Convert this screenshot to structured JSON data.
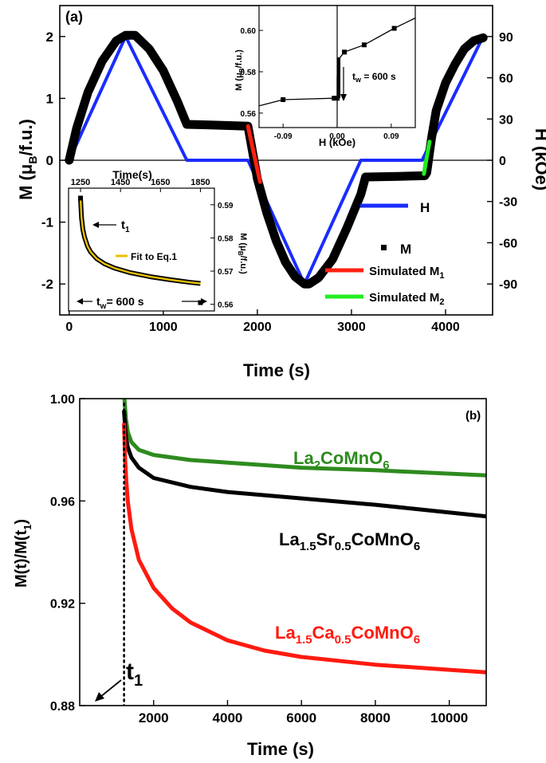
{
  "chart_data": [
    {
      "panel": "(a)",
      "type": "line",
      "xlabel": "Time (s)",
      "ylabel_left": "M (μB/f.u.)",
      "ylabel_right": "H (kOe)",
      "xlim": [
        -100,
        4500
      ],
      "ylim_left": [
        -2.5,
        2.5
      ],
      "ylim_right": [
        -112.5,
        112.5
      ],
      "x_ticks": [
        "0",
        "1000",
        "2000",
        "3000",
        "4000"
      ],
      "y_ticks_left": [
        "-2",
        "-1",
        "0",
        "1",
        "2"
      ],
      "y_ticks_right": [
        "-90",
        "-60",
        "-30",
        "0",
        "30",
        "60",
        "90"
      ],
      "legend": [
        "H",
        "M",
        "Simulated M1",
        "Simulated M2"
      ],
      "colors": {
        "H": "#1a2cff",
        "M": "#000000",
        "M1": "#ff2010",
        "M2": "#22ee22",
        "fit": "#e8c000"
      },
      "series": [
        {
          "name": "H",
          "axis": "right",
          "x": [
            0,
            600,
            1250,
            1900,
            2500,
            3100,
            3750,
            4400
          ],
          "y": [
            0,
            90,
            0,
            0,
            -90,
            0,
            0,
            90
          ]
        },
        {
          "name": "M",
          "axis": "left",
          "x": [
            0,
            80,
            200,
            350,
            500,
            600,
            700,
            850,
            1000,
            1150,
            1250,
            1500,
            1900,
            2000,
            2100,
            2200,
            2300,
            2400,
            2500,
            2550,
            2650,
            2800,
            2950,
            3100,
            3150,
            3500,
            3780,
            3800,
            3850,
            3900,
            4000,
            4100,
            4200,
            4300,
            4400
          ],
          "y": [
            0,
            0.52,
            1.1,
            1.6,
            1.93,
            2.02,
            2.02,
            1.8,
            1.45,
            0.95,
            0.58,
            0.57,
            0.55,
            -0.3,
            -0.85,
            -1.3,
            -1.65,
            -1.88,
            -2.0,
            -2.0,
            -1.9,
            -1.6,
            -1.1,
            -0.55,
            -0.27,
            -0.26,
            -0.25,
            -0.2,
            0.35,
            0.8,
            1.25,
            1.55,
            1.8,
            1.93,
            1.98
          ]
        },
        {
          "name": "Simulated M1",
          "axis": "left",
          "x": [
            1900,
            1950,
            2000,
            2030
          ],
          "y": [
            0.55,
            0.2,
            -0.15,
            -0.35
          ]
        },
        {
          "name": "Simulated M2",
          "axis": "left",
          "x": [
            3770,
            3800,
            3830
          ],
          "y": [
            -0.22,
            0.05,
            0.3
          ]
        }
      ],
      "insets": [
        {
          "type": "line",
          "xlabel": "H (kOe)",
          "ylabel": "M (μB/f.u.)",
          "xlim": [
            -0.13,
            0.13
          ],
          "ylim": [
            0.553,
            0.612
          ],
          "x_ticks": [
            "-0.09",
            "0.00",
            "0.09"
          ],
          "y_ticks": [
            "0.56",
            "0.58",
            "0.60"
          ],
          "annotation": "tw = 600 s",
          "x": [
            -0.13,
            -0.09,
            -0.005,
            0.0,
            0.0,
            0.001,
            0.002,
            0.003,
            0.005,
            0.012,
            0.045,
            0.095,
            0.13
          ],
          "y": [
            0.5635,
            0.5665,
            0.5672,
            0.5672,
            0.577,
            0.583,
            0.585,
            0.586,
            0.587,
            0.5895,
            0.593,
            0.601,
            0.606
          ],
          "marker_x": [
            -0.09,
            -0.005,
            0.0,
            0.012,
            0.045,
            0.095
          ]
        },
        {
          "type": "line",
          "xlabel_top": "Time(s)",
          "ylabel_right": "M (μB/f.u.)",
          "xlim": [
            1190,
            1920
          ],
          "ylim": [
            0.558,
            0.595
          ],
          "x_ticks": [
            "1250",
            "1450",
            "1650",
            "1850"
          ],
          "y_ticks": [
            "0.56",
            "0.57",
            "0.58",
            "0.59"
          ],
          "legend": [
            "Fit to Eq.1"
          ],
          "annotations": [
            "t1",
            "tw = 600 s"
          ],
          "x": [
            1250,
            1255,
            1262,
            1270,
            1285,
            1300,
            1330,
            1370,
            1420,
            1500,
            1600,
            1700,
            1800,
            1850
          ],
          "y": [
            0.592,
            0.586,
            0.5825,
            0.5802,
            0.5775,
            0.5758,
            0.5738,
            0.5722,
            0.5709,
            0.5695,
            0.5683,
            0.5674,
            0.5666,
            0.5663
          ],
          "marker_x": [
            1250,
            1850
          ],
          "marker_y": [
            0.592,
            0.5605
          ]
        }
      ]
    },
    {
      "panel": "(b)",
      "type": "line",
      "xlabel": "Time (s)",
      "ylabel": "M(t)/M(t1)",
      "xlim": [
        0,
        11000
      ],
      "ylim": [
        0.88,
        1.0
      ],
      "x_ticks": [
        "2000",
        "4000",
        "6000",
        "8000",
        "10000"
      ],
      "y_ticks": [
        "0.88",
        "0.92",
        "0.96",
        "1.00"
      ],
      "t1_line_x": 1200,
      "series": [
        {
          "name": "La2CoMnO6",
          "color": "#2e8b1e",
          "x": [
            1210,
            1250,
            1300,
            1400,
            1600,
            2000,
            3000,
            4000,
            6000,
            8000,
            11000
          ],
          "y": [
            1.0,
            0.992,
            0.987,
            0.983,
            0.98,
            0.978,
            0.976,
            0.975,
            0.973,
            0.972,
            0.97
          ]
        },
        {
          "name": "La1.5Sr0.5CoMnO6",
          "color": "#000000",
          "x": [
            1200,
            1250,
            1300,
            1400,
            1600,
            2000,
            3000,
            4000,
            6000,
            8000,
            11000
          ],
          "y": [
            0.995,
            0.985,
            0.981,
            0.977,
            0.973,
            0.969,
            0.9655,
            0.9635,
            0.961,
            0.9585,
            0.954
          ]
        },
        {
          "name": "La1.5Ca0.5CoMnO6",
          "color": "#ff1a10",
          "x": [
            1200,
            1230,
            1260,
            1300,
            1400,
            1600,
            2000,
            2500,
            3000,
            4000,
            5000,
            6000,
            8000,
            10000,
            11000
          ],
          "y": [
            0.99,
            0.976,
            0.968,
            0.96,
            0.949,
            0.937,
            0.926,
            0.918,
            0.9125,
            0.9055,
            0.9015,
            0.899,
            0.896,
            0.894,
            0.893
          ]
        }
      ]
    }
  ],
  "text": {
    "a_panel": "(a)",
    "a_xlabel": "Time (s)",
    "a_ylabel_left_main": "M (μ",
    "a_ylabel_left_sub": "B",
    "a_ylabel_left_tail": "/f.u.)",
    "a_ylabel_right": "H (kOe)",
    "leg_H": "H",
    "leg_M": "M",
    "leg_M1_main": "Simulated M",
    "leg_M1_sub": "1",
    "leg_M2_main": "Simulated M",
    "leg_M2_sub": "2",
    "in1_xlabel": "H (kOe)",
    "in1_ylabel_main": "M (μ",
    "in1_ylabel_sub": "B",
    "in1_ylabel_tail": "/f.u.)",
    "in1_tw_main": "t",
    "in1_tw_sub": "w",
    "in1_tw_tail": " = 600 s",
    "in2_xlabel_top": "Time(s)",
    "in2_ylabel_main": "M (μ",
    "in2_ylabel_sub": "B",
    "in2_ylabel_tail": "/f.u.)",
    "in2_t1_main": "t",
    "in2_t1_sub": "1",
    "in2_fit": "Fit to Eq.1",
    "in2_tw_main": "t",
    "in2_tw_sub": "w",
    "in2_tw_tail": "= 600 s",
    "b_panel": "(b)",
    "b_xlabel": "Time (s)",
    "b_ylabel_main": "M(t)/M(t",
    "b_ylabel_sub": "1",
    "b_ylabel_tail": ")",
    "b_t1_main": "t",
    "b_t1_sub": "1",
    "lab1_a": "La",
    "lab1_b": "2",
    "lab1_c": "CoMnO",
    "lab1_d": "6",
    "lab2_a": "La",
    "lab2_b": "1.5",
    "lab2_c": "Sr",
    "lab2_d": "0.5",
    "lab2_e": "CoMnO",
    "lab2_f": "6",
    "lab3_a": "La",
    "lab3_b": "1.5",
    "lab3_c": "Ca",
    "lab3_d": "0.5",
    "lab3_e": "CoMnO",
    "lab3_f": "6"
  }
}
